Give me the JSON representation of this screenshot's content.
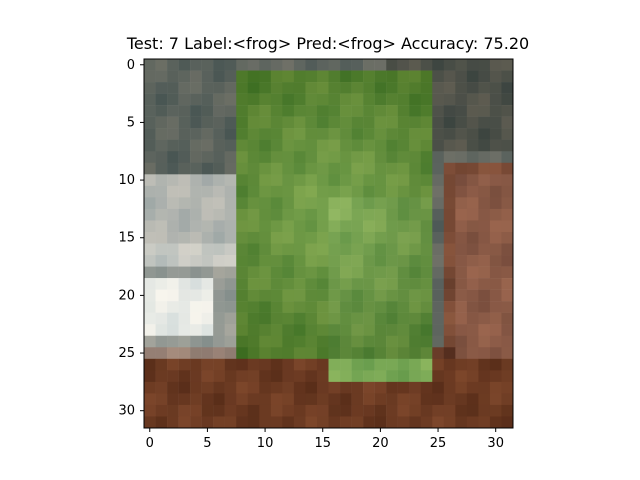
{
  "chart_data": {
    "type": "heatmap",
    "title": "Test: 7  Label:<frog>  Pred:<frog>  Accuracy: 75.20",
    "xlabel": "",
    "ylabel": "",
    "xlim": [
      -0.5,
      31.5
    ],
    "ylim": [
      31.5,
      -0.5
    ],
    "x_ticks": [
      0,
      5,
      10,
      15,
      20,
      25,
      30
    ],
    "y_ticks": [
      0,
      5,
      10,
      15,
      20,
      25,
      30
    ],
    "grid": false,
    "image_size": [
      32,
      32
    ],
    "regions": [
      {
        "name": "background-top-left",
        "x": [
          0,
          8
        ],
        "y": [
          0,
          10
        ],
        "color": "#5a625c"
      },
      {
        "name": "background-top-right",
        "x": [
          22,
          31
        ],
        "y": [
          0,
          7
        ],
        "color": "#4e5149"
      },
      {
        "name": "light-rock",
        "x": [
          0,
          8
        ],
        "y": [
          10,
          17
        ],
        "color": "#b2b5b0"
      },
      {
        "name": "bright-patch",
        "x": [
          0,
          5
        ],
        "y": [
          19,
          23
        ],
        "color": "#f4f6f2"
      },
      {
        "name": "bottom-soil",
        "x": [
          0,
          31
        ],
        "y": [
          26,
          31
        ],
        "color": "#6b3a22"
      },
      {
        "name": "right-soil",
        "x": [
          27,
          31
        ],
        "y": [
          10,
          25
        ],
        "color": "#8a5a46"
      },
      {
        "name": "frog-body",
        "x": [
          8,
          24
        ],
        "y": [
          1,
          25
        ],
        "color": "#5f8e32"
      },
      {
        "name": "frog-belly-light",
        "x": [
          16,
          24
        ],
        "y": [
          12,
          27
        ],
        "color": "#79a855"
      }
    ]
  }
}
